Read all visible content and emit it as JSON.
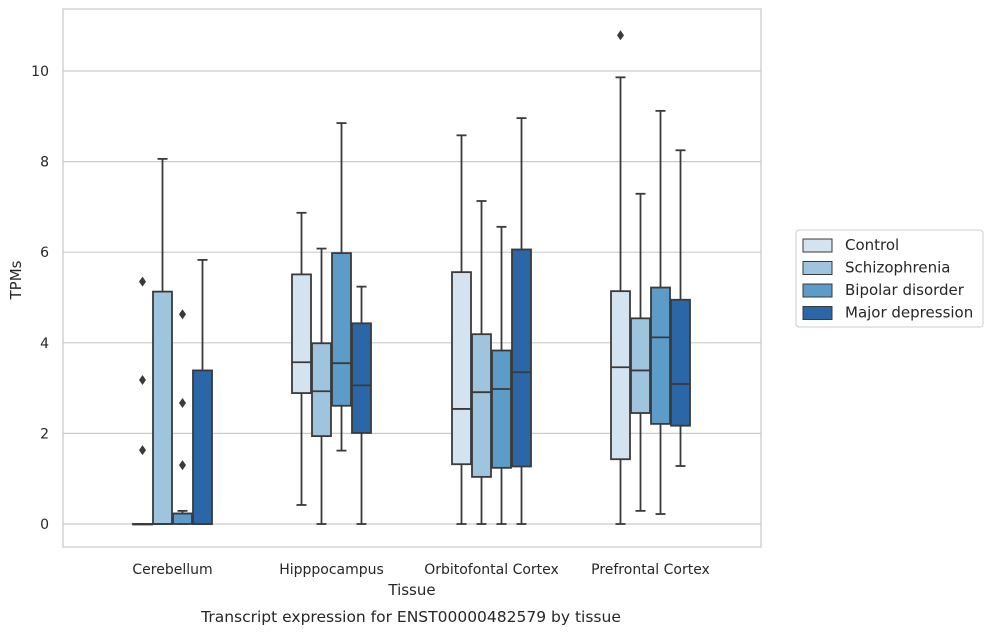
{
  "chart_data": {
    "type": "box",
    "xlabel": "Tissue",
    "ylabel": "TPMs",
    "caption": "Transcript expression for ENST00000482579 by tissue",
    "ylim": [
      -0.5,
      11.4
    ],
    "yticks": [
      0,
      2,
      4,
      6,
      8,
      10
    ],
    "grid": true,
    "legend_position": "right",
    "categories": [
      "Cerebellum",
      "Hipppocampus",
      "Orbitofontal Cortex",
      "Prefrontal Cortex"
    ],
    "series": [
      {
        "name": "Control",
        "color": "#d4e3f0",
        "boxes": [
          {
            "min": 0,
            "q1": 0,
            "median": 0,
            "q3": 0,
            "max": 0,
            "outliers": [
              5.35,
              3.18,
              1.63
            ]
          },
          {
            "min": 0.42,
            "q1": 2.89,
            "median": 3.57,
            "q3": 5.51,
            "max": 6.87,
            "outliers": []
          },
          {
            "min": 0,
            "q1": 1.32,
            "median": 2.54,
            "q3": 5.56,
            "max": 8.58,
            "outliers": []
          },
          {
            "min": 0,
            "q1": 1.43,
            "median": 3.46,
            "q3": 5.14,
            "max": 9.86,
            "outliers": [
              10.79
            ]
          }
        ]
      },
      {
        "name": "Schizophrenia",
        "color": "#9ec4de",
        "boxes": [
          {
            "min": 0,
            "q1": 0,
            "median": 0,
            "q3": 5.13,
            "max": 8.06,
            "outliers": []
          },
          {
            "min": 0,
            "q1": 1.94,
            "median": 2.93,
            "q3": 3.99,
            "max": 6.08,
            "outliers": []
          },
          {
            "min": 0,
            "q1": 1.04,
            "median": 2.91,
            "q3": 4.19,
            "max": 7.13,
            "outliers": []
          },
          {
            "min": 0.29,
            "q1": 2.45,
            "median": 3.39,
            "q3": 4.54,
            "max": 7.29,
            "outliers": []
          }
        ]
      },
      {
        "name": "Bipolar disorder",
        "color": "#5d9cc9",
        "boxes": [
          {
            "min": 0,
            "q1": 0,
            "median": 0.23,
            "q3": 0.23,
            "max": 0.29,
            "outliers": [
              4.63,
              2.67,
              1.3
            ]
          },
          {
            "min": 1.62,
            "q1": 2.61,
            "median": 3.55,
            "q3": 5.98,
            "max": 8.85,
            "outliers": []
          },
          {
            "min": 0,
            "q1": 1.24,
            "median": 2.98,
            "q3": 3.83,
            "max": 6.56,
            "outliers": []
          },
          {
            "min": 0.22,
            "q1": 2.21,
            "median": 4.12,
            "q3": 5.22,
            "max": 9.12,
            "outliers": []
          }
        ]
      },
      {
        "name": "Major depression",
        "color": "#2b66a6",
        "boxes": [
          {
            "min": 0,
            "q1": 0,
            "median": 0,
            "q3": 3.39,
            "max": 5.83,
            "outliers": []
          },
          {
            "min": 0,
            "q1": 2.01,
            "median": 3.06,
            "q3": 4.43,
            "max": 5.24,
            "outliers": []
          },
          {
            "min": 0,
            "q1": 1.27,
            "median": 3.35,
            "q3": 6.06,
            "max": 8.96,
            "outliers": []
          },
          {
            "min": 1.28,
            "q1": 2.17,
            "median": 3.09,
            "q3": 4.95,
            "max": 8.25,
            "outliers": []
          }
        ]
      }
    ]
  }
}
